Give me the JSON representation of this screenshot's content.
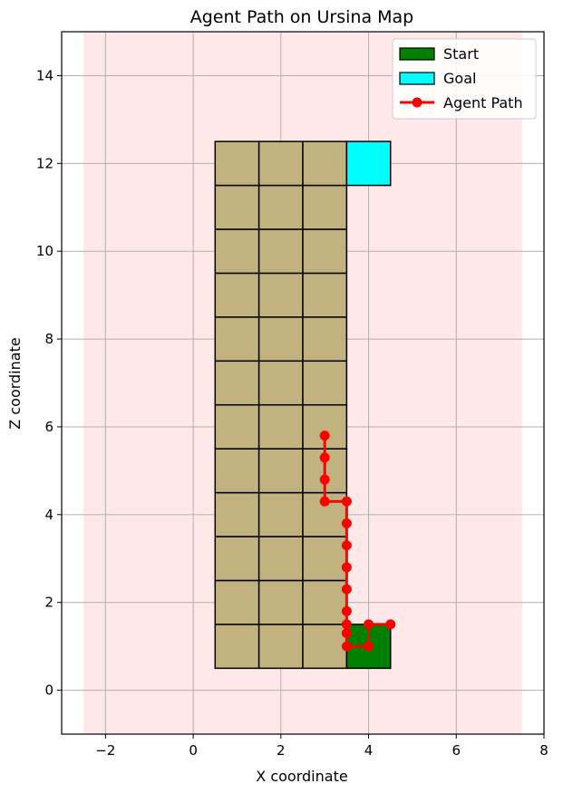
{
  "chart_data": {
    "type": "scatter",
    "title": "Agent Path on Ursina Map",
    "xlabel": "X coordinate",
    "ylabel": "Z coordinate",
    "xlim": [
      -3,
      8
    ],
    "ylim": [
      -1,
      15
    ],
    "xticks": [
      -2,
      0,
      2,
      4,
      6,
      8
    ],
    "yticks": [
      0,
      2,
      4,
      6,
      8,
      10,
      12,
      14
    ],
    "grid": true,
    "legend_position": "top-right",
    "colors": {
      "background_region": "#ffe8e8",
      "floor_tile": "#c2b280",
      "start": "#008000",
      "goal": "#00ffff",
      "path": "#ff0000",
      "grid": "#b0b0b0"
    },
    "background_region": {
      "x": [
        -2.5,
        7.5
      ],
      "z": [
        -1,
        15
      ]
    },
    "floor_tiles": {
      "x_centers": [
        1,
        2,
        3
      ],
      "z_centers": [
        1,
        2,
        3,
        4,
        5,
        6,
        7,
        8,
        9,
        10,
        11,
        12
      ],
      "size": 1
    },
    "start_tile": {
      "x": 4,
      "z": 1,
      "size": 1
    },
    "goal_tile": {
      "x": 4,
      "z": 12,
      "size": 1
    },
    "legend": [
      {
        "key": "start",
        "label": "Start"
      },
      {
        "key": "goal",
        "label": "Goal"
      },
      {
        "key": "path",
        "label": "Agent Path"
      }
    ],
    "path": {
      "name": "Agent Path",
      "x": [
        4.5,
        4.0,
        4.0,
        3.5,
        3.5,
        3.5,
        3.5,
        3.5,
        3.5,
        3.5,
        3.5,
        3.5,
        3.0,
        3.0,
        3.0,
        3.0
      ],
      "z": [
        1.5,
        1.5,
        1.0,
        1.0,
        1.3,
        1.5,
        1.8,
        2.3,
        2.8,
        3.3,
        3.8,
        4.3,
        4.3,
        4.8,
        5.3,
        5.8
      ]
    }
  }
}
